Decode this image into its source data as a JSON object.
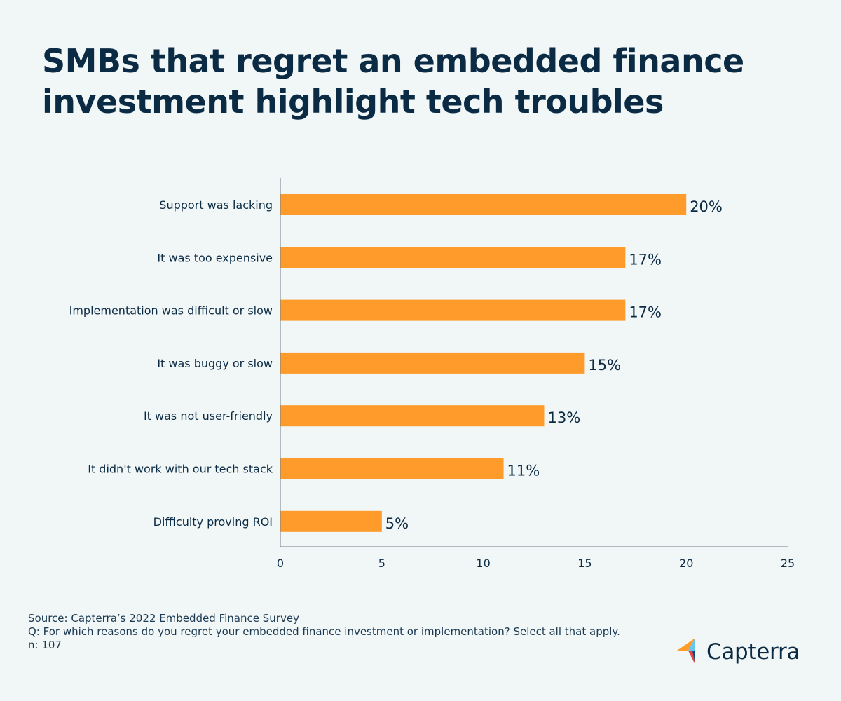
{
  "title_lines": [
    "SMBs that regret an embedded finance",
    "investment highlight tech troubles"
  ],
  "chart_data": {
    "type": "bar",
    "orientation": "horizontal",
    "categories": [
      "Support was lacking",
      "It was too expensive",
      "Implementation was difficult or slow",
      "It was buggy or slow",
      "It was not user-friendly",
      "It didn't work with our tech stack",
      "Difficulty proving ROI"
    ],
    "values": [
      20,
      17,
      17,
      15,
      13,
      11,
      5
    ],
    "value_labels": [
      "20%",
      "17%",
      "17%",
      "15%",
      "13%",
      "11%",
      "5%"
    ],
    "x_ticks": [
      0,
      5,
      10,
      15,
      20,
      25
    ],
    "xlim": [
      0,
      25
    ],
    "xlabel": "",
    "ylabel": "",
    "bar_color": "#ff9b2a",
    "grid": false
  },
  "footer": {
    "source": "Source: Capterra’s 2022 Embedded Finance Survey",
    "question": "Q: For which reasons do you regret your embedded finance investment or implementation? Select all that apply.",
    "n": "n: 107"
  },
  "logo": {
    "text": "Capterra",
    "colors": [
      "#ff9d28",
      "#68c5ed",
      "#044d80",
      "#e54747"
    ]
  },
  "colors": {
    "background": "#f1f6f7",
    "text": "#0b2b44",
    "axis": "#6f7f8b"
  }
}
